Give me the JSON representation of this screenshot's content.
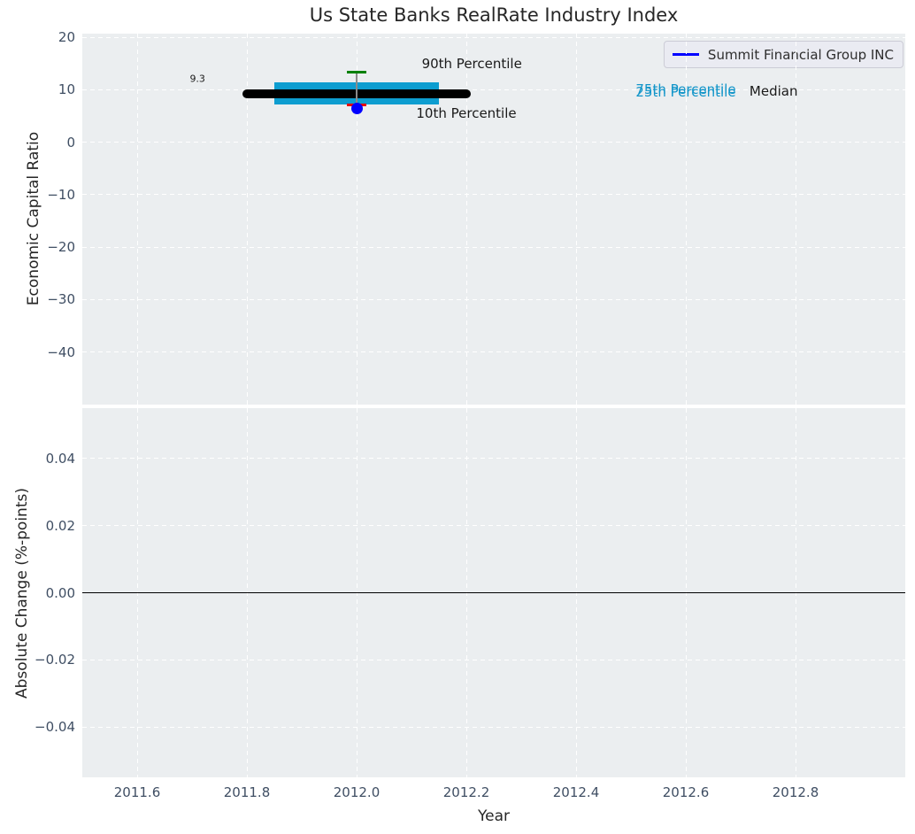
{
  "figure": {
    "title": "Us State Banks RealRate Industry Index",
    "xlabel": "Year"
  },
  "legend": {
    "label": "Summit Financial Group INC",
    "line_color": "#0000ff"
  },
  "colors": {
    "panel_background": "#ebeef0",
    "grid": "#ffffff",
    "tick_label": "#3f4e63",
    "median_line": "#000000",
    "iqr_band": "#0d9dd0",
    "percentile_text": "#1295c9",
    "p90_cap": "#008000",
    "p10_cap": "#e60000",
    "errorbar_line": "#8a8a8a",
    "company_point": "#0000ff",
    "zero_line": "#000000"
  },
  "chart_data": [
    {
      "type": "line",
      "panel": "top",
      "ylabel": "Economic Capital Ratio",
      "xlim": [
        2011.5,
        2013.0
      ],
      "ylim": [
        -50,
        20.7
      ],
      "xtick_values": [
        2011.6,
        2011.8,
        2012.0,
        2012.2,
        2012.4,
        2012.6,
        2012.8
      ],
      "xtick_labels": [
        "2011.6",
        "2011.8",
        "2012.0",
        "2012.2",
        "2012.4",
        "2012.6",
        "2012.8"
      ],
      "ytick_values": [
        20,
        10,
        0,
        -10,
        -20,
        -30,
        -40
      ],
      "ytick_labels": [
        "20",
        "10",
        "0",
        "−10",
        "−20",
        "−30",
        "−40"
      ],
      "grid": true,
      "legend_location": "upper right",
      "industry_stats": {
        "year": 2012.0,
        "median": 9.3,
        "median_label": "9.3",
        "median_span_x": [
          2011.8,
          2012.2
        ],
        "iqr_span_x": [
          2011.85,
          2012.15
        ],
        "iqr_band_top": 11.5,
        "iqr_band_bottom": 7.2,
        "p90": 13.4,
        "p10": 7.1
      },
      "series": [
        {
          "name": "Summit Financial Group INC",
          "points": [
            [
              2012.0,
              6.4
            ]
          ]
        }
      ],
      "annotations": [
        {
          "text": "9.3",
          "x": 2011.71,
          "y": 12.1,
          "color": "#1a1a1a",
          "size": 11
        },
        {
          "text": "90th Percentile",
          "x": 2012.21,
          "y": 15.0,
          "color": "#1a1a1a",
          "size": 15
        },
        {
          "text": "10th Percentile",
          "x": 2012.2,
          "y": 5.5,
          "color": "#1a1a1a",
          "size": 15
        },
        {
          "text": "75th Percentile",
          "x": 2012.6,
          "y": 10.0,
          "color": "#1295c9",
          "size": 15
        },
        {
          "text": "25th Percentile",
          "x": 2012.6,
          "y": 9.5,
          "color": "#1295c9",
          "size": 15
        },
        {
          "text": "Median",
          "x": 2012.76,
          "y": 9.7,
          "color": "#1a1a1a",
          "size": 15
        }
      ]
    },
    {
      "type": "line",
      "panel": "bottom",
      "ylabel": "Absolute Change (%-points)",
      "xlabel": "Year",
      "xlim": [
        2011.5,
        2013.0
      ],
      "ylim": [
        -0.055,
        0.055
      ],
      "ytick_values": [
        0.04,
        0.02,
        0.0,
        -0.02,
        -0.04
      ],
      "ytick_labels": [
        "0.04",
        "0.02",
        "0.00",
        "−0.02",
        "−0.04"
      ],
      "grid": true,
      "zero_line_y": 0.0
    }
  ]
}
